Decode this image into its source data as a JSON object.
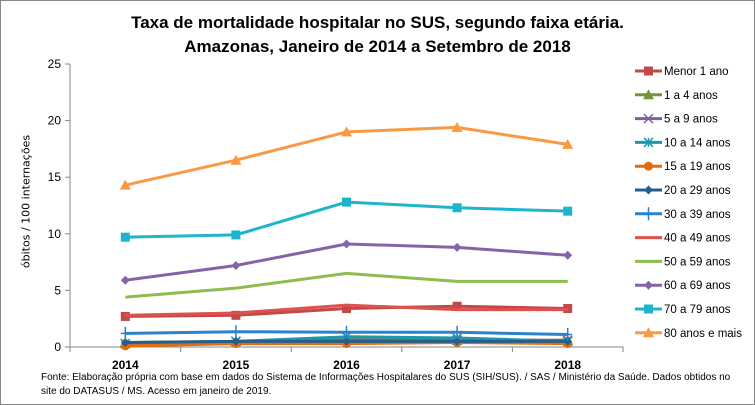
{
  "chart_data": {
    "type": "line",
    "title": "Taxa de mortalidade hospitalar no SUS, segundo faixa etária.",
    "subtitle": "Amazonas, Janeiro de 2014 a Setembro de 2018",
    "xlabel": "",
    "ylabel": "óbitos / 100 internações",
    "categories": [
      "2014",
      "2015",
      "2016",
      "2017",
      "2018"
    ],
    "ylim": [
      0,
      25
    ],
    "yticks": [
      0,
      5,
      10,
      15,
      20,
      25
    ],
    "grid": false,
    "legend": "right",
    "series": [
      {
        "name": "Menor 1 ano",
        "color": "#be4b48",
        "marker": "square",
        "values": [
          2.7,
          2.8,
          3.4,
          3.6,
          3.4
        ]
      },
      {
        "name": "1 a 4 anos",
        "color": "#77933c",
        "marker": "triangle",
        "values": [
          0.4,
          0.5,
          0.7,
          0.6,
          0.6
        ]
      },
      {
        "name": "5 a 9 anos",
        "color": "#7f5fa0",
        "marker": "x",
        "values": [
          0.3,
          0.5,
          0.6,
          0.6,
          0.6
        ]
      },
      {
        "name": "10 a 14 anos",
        "color": "#1f97a8",
        "marker": "star",
        "values": [
          0.3,
          0.5,
          0.9,
          0.8,
          0.5
        ]
      },
      {
        "name": "15 a 19 anos",
        "color": "#e46c0a",
        "marker": "circle",
        "values": [
          0.1,
          0.3,
          0.3,
          0.4,
          0.3
        ]
      },
      {
        "name": "20 a 29 anos",
        "color": "#245f8f",
        "marker": "diamond",
        "values": [
          0.4,
          0.5,
          0.5,
          0.5,
          0.5
        ]
      },
      {
        "name": "30 a 39 anos",
        "color": "#2c82c9",
        "marker": "plus",
        "values": [
          1.2,
          1.35,
          1.3,
          1.3,
          1.1
        ]
      },
      {
        "name": "40 a 49 anos",
        "color": "#e0504d",
        "marker": "none",
        "values": [
          2.8,
          3.0,
          3.7,
          3.3,
          3.3
        ]
      },
      {
        "name": "50 a 59 anos",
        "color": "#8fbc4f",
        "marker": "none",
        "values": [
          4.4,
          5.2,
          6.5,
          5.8,
          5.8
        ]
      },
      {
        "name": "60 a 69 anos",
        "color": "#8563a9",
        "marker": "diamond",
        "values": [
          5.9,
          7.2,
          9.1,
          8.8,
          8.1
        ]
      },
      {
        "name": "70 a 79 anos",
        "color": "#1eb4cc",
        "marker": "square",
        "values": [
          9.7,
          9.9,
          12.8,
          12.3,
          12.0
        ]
      },
      {
        "name": "80 anos e mais",
        "color": "#f79a43",
        "marker": "triangle",
        "values": [
          14.3,
          16.5,
          19.0,
          19.4,
          17.9
        ]
      }
    ]
  },
  "footer": "Fonte: Elaboração própria com base em dados do  Sistema de Informações Hospitalares do SUS (SIH/SUS). / SAS / Ministério da Saúde. Dados obtidos no site do DATASUS / MS. Acesso em janeiro de 2019."
}
